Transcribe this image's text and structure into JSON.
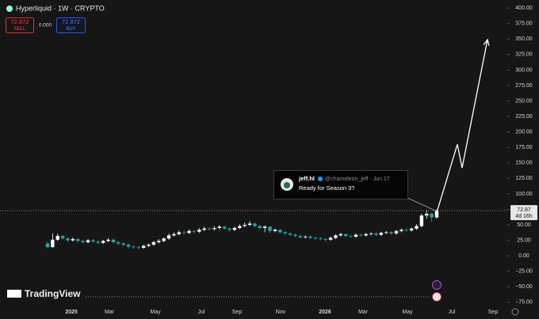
{
  "header": {
    "title": "Hyperliquid · 1W · CRYPTO",
    "sell_price": "72.872",
    "sell_label": "SELL",
    "spread": "0.000",
    "buy_price": "72.872",
    "buy_label": "BUY"
  },
  "chart_data": {
    "type": "candlestick",
    "x_labels": [
      "2025",
      "Mar",
      "May",
      "Jul",
      "Sep",
      "Nov",
      "2026",
      "Mar",
      "May",
      "Jul",
      "Sep"
    ],
    "ylim": [
      -79,
      413
    ],
    "yticks": [
      {
        "value": 400,
        "label": "400.00"
      },
      {
        "value": 375,
        "label": "375.00"
      },
      {
        "value": 350,
        "label": "350.00"
      },
      {
        "value": 325,
        "label": "325.00"
      },
      {
        "value": 300,
        "label": "300.00"
      },
      {
        "value": 275,
        "label": "275.00"
      },
      {
        "value": 250,
        "label": "250.00"
      },
      {
        "value": 225,
        "label": "225.00"
      },
      {
        "value": 200,
        "label": "200.00"
      },
      {
        "value": 175,
        "label": "175.00"
      },
      {
        "value": 150,
        "label": "150.00"
      },
      {
        "value": 125,
        "label": "125.00"
      },
      {
        "value": 100,
        "label": "100.00"
      },
      {
        "value": 75,
        "label": "75.00"
      },
      {
        "value": 50,
        "label": "50.00"
      },
      {
        "value": 25,
        "label": "25.00"
      },
      {
        "value": 0,
        "label": "0.00"
      },
      {
        "value": -25,
        "label": "−25.00"
      },
      {
        "value": -50,
        "label": "−50.00"
      },
      {
        "value": -75,
        "label": "−75.00"
      }
    ],
    "up_color": "#ffffff",
    "down_color": "#2aa3a8",
    "open": [
      20,
      14,
      26,
      32,
      28,
      25,
      27,
      24,
      22,
      25,
      23,
      21,
      24,
      26,
      22,
      20,
      18,
      15,
      14,
      13,
      16,
      18,
      22,
      24,
      28,
      33,
      35,
      38,
      37,
      40,
      39,
      42,
      44,
      43,
      45,
      47,
      44,
      42,
      45,
      48,
      50,
      52,
      48,
      45,
      47,
      40,
      42,
      38,
      36,
      34,
      32,
      30,
      31,
      29,
      28,
      27,
      26,
      29,
      33,
      35,
      32,
      31,
      34,
      33,
      35,
      36,
      34,
      37,
      38,
      36,
      40,
      42,
      41,
      44,
      48,
      65,
      68,
      62
    ],
    "high": [
      23,
      36,
      36,
      34,
      30,
      30,
      29,
      26,
      27,
      27,
      25,
      26,
      29,
      28,
      24,
      22,
      20,
      17,
      16,
      18,
      20,
      24,
      27,
      30,
      36,
      38,
      41,
      41,
      43,
      42,
      45,
      47,
      46,
      48,
      50,
      49,
      46,
      47,
      51,
      54,
      56,
      54,
      50,
      49,
      48,
      44,
      43,
      40,
      38,
      36,
      34,
      33,
      33,
      31,
      30,
      29,
      31,
      35,
      37,
      36,
      34,
      36,
      36,
      37,
      38,
      38,
      39,
      40,
      40,
      42,
      44,
      44,
      46,
      51,
      68,
      73,
      70,
      75
    ],
    "low": [
      12,
      13,
      24,
      26,
      22,
      23,
      22,
      20,
      20,
      21,
      19,
      19,
      22,
      20,
      17,
      15,
      12,
      11,
      10,
      11,
      14,
      16,
      20,
      22,
      26,
      31,
      33,
      34,
      35,
      36,
      37,
      40,
      41,
      41,
      43,
      42,
      39,
      40,
      43,
      46,
      48,
      46,
      42,
      38,
      37,
      38,
      36,
      34,
      32,
      30,
      28,
      28,
      27,
      26,
      25,
      23,
      24,
      27,
      31,
      30,
      29,
      29,
      31,
      31,
      33,
      32,
      32,
      35,
      34,
      34,
      38,
      39,
      39,
      42,
      46,
      60,
      55,
      60
    ],
    "close": [
      14,
      26,
      32,
      28,
      25,
      27,
      24,
      22,
      25,
      23,
      21,
      24,
      26,
      22,
      20,
      18,
      15,
      14,
      13,
      16,
      18,
      22,
      24,
      28,
      33,
      35,
      38,
      37,
      40,
      39,
      42,
      44,
      43,
      45,
      47,
      44,
      42,
      45,
      48,
      50,
      52,
      48,
      45,
      47,
      40,
      42,
      38,
      36,
      34,
      32,
      30,
      31,
      29,
      28,
      27,
      26,
      29,
      33,
      35,
      32,
      31,
      34,
      33,
      35,
      36,
      34,
      37,
      38,
      36,
      40,
      42,
      41,
      44,
      48,
      65,
      68,
      62,
      72.87
    ],
    "last_price": 72.87,
    "last_price_label": "72.87",
    "countdown": "4d 16h",
    "projection": [
      70,
      180,
      142,
      349
    ],
    "projection_color": "#ffffff",
    "annotation": {
      "author": "jeff.hl",
      "handle": "@chameleon_jeff · Jun 17",
      "text": "Ready for Season 3?"
    },
    "watermark": "TradingView"
  }
}
